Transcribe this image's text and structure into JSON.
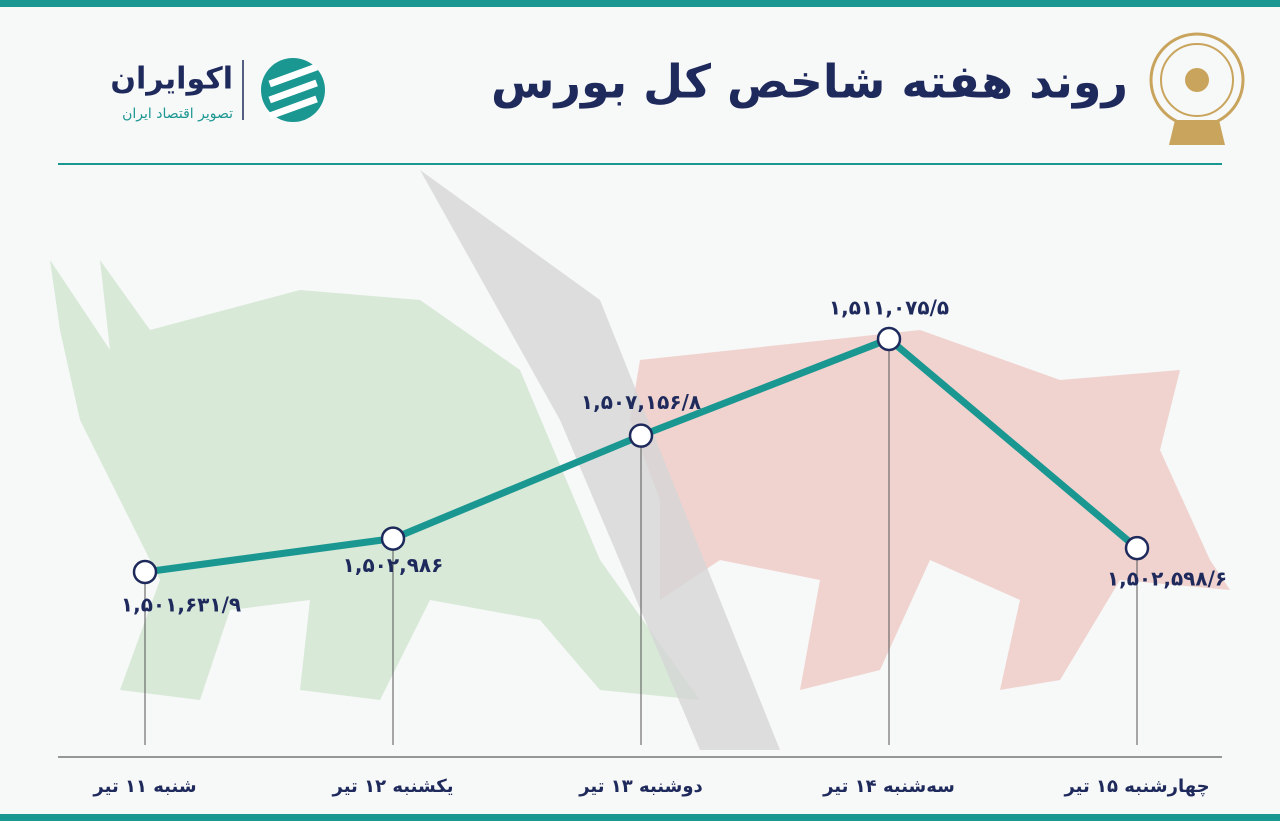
{
  "header": {
    "title": "روند هفته شاخص کل بورس",
    "brand": "اکوایران",
    "brand_tagline": "تصویر اقتصاد ایران"
  },
  "chart_data": {
    "type": "line",
    "categories": [
      "شنبه ۱۱ تیر",
      "یکشنبه ۱۲ تیر",
      "دوشنبه ۱۳ تیر",
      "سه‌شنبه ۱۴ تیر",
      "چهارشنبه ۱۵ تیر"
    ],
    "values": [
      1501631.9,
      1502986,
      1507156.8,
      1511075.5,
      1502598.6
    ],
    "value_labels": [
      "۱,۵۰۱,۶۳۱/۹",
      "۱,۵۰۲,۹۸۶",
      "۱,۵۰۷,۱۵۶/۸",
      "۱,۵۱۱,۰۷۵/۵",
      "۱,۵۰۲,۵۹۸/۶"
    ],
    "color": "#1b9792"
  }
}
